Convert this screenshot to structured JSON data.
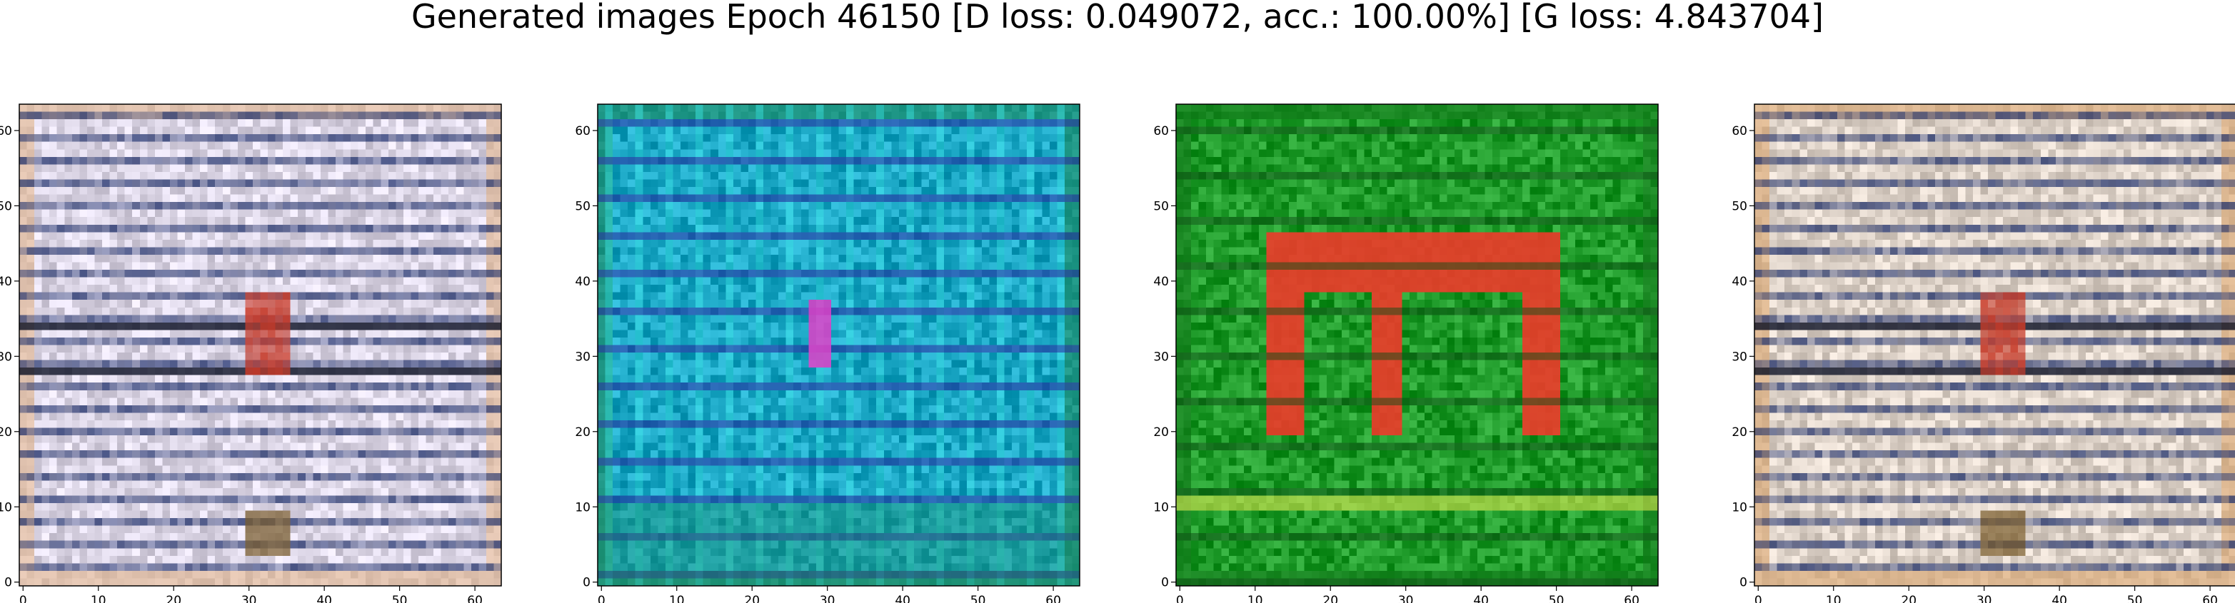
{
  "suptitle": "Generated images Epoch 46150 [D loss: 0.049072, acc.: 100.00%] [G loss: 4.843704]",
  "chart_data": [
    {
      "type": "image",
      "title": "",
      "xlabel": "",
      "ylabel": "",
      "xlim": [
        -0.5,
        63.5
      ],
      "ylim": [
        63.5,
        -0.5
      ],
      "xticks": [
        0,
        10,
        20,
        30,
        40,
        50,
        60
      ],
      "yticks": [
        0,
        10,
        20,
        30,
        40,
        50,
        60
      ],
      "palette": {
        "base": "#dcd6e6",
        "stripe": "#1e2f6a",
        "accent": "#c83a28",
        "edge": "#e2b489"
      }
    },
    {
      "type": "image",
      "title": "",
      "xlabel": "",
      "ylabel": "",
      "xlim": [
        -0.5,
        63.5
      ],
      "ylim": [
        63.5,
        -0.5
      ],
      "xticks": [
        0,
        10,
        20,
        30,
        40,
        50,
        60
      ],
      "yticks": [
        0,
        10,
        20,
        30,
        40,
        50,
        60
      ],
      "palette": {
        "base": "#1aa6c4",
        "stripe": "#2b2aa0",
        "accent": "#e040c8",
        "edge": "#1f8a5a"
      }
    },
    {
      "type": "image",
      "title": "",
      "xlabel": "",
      "ylabel": "",
      "xlim": [
        -0.5,
        63.5
      ],
      "ylim": [
        63.5,
        -0.5
      ],
      "xticks": [
        0,
        10,
        20,
        30,
        40,
        50,
        60
      ],
      "yticks": [
        0,
        10,
        20,
        30,
        40,
        50,
        60
      ],
      "palette": {
        "base": "#1f9b2a",
        "stripe": "#0f4e16",
        "accent": "#ee3a2a",
        "edge": "#147a1c"
      }
    },
    {
      "type": "image",
      "title": "",
      "xlabel": "",
      "ylabel": "",
      "xlim": [
        -0.5,
        63.5
      ],
      "ylim": [
        63.5,
        -0.5
      ],
      "xticks": [
        0,
        10,
        20,
        30,
        40,
        50,
        60
      ],
      "yticks": [
        0,
        10,
        20,
        30,
        40,
        50,
        60
      ],
      "palette": {
        "base": "#ddd2c8",
        "stripe": "#1e2f6a",
        "accent": "#c83a28",
        "edge": "#d9a36b"
      }
    }
  ]
}
